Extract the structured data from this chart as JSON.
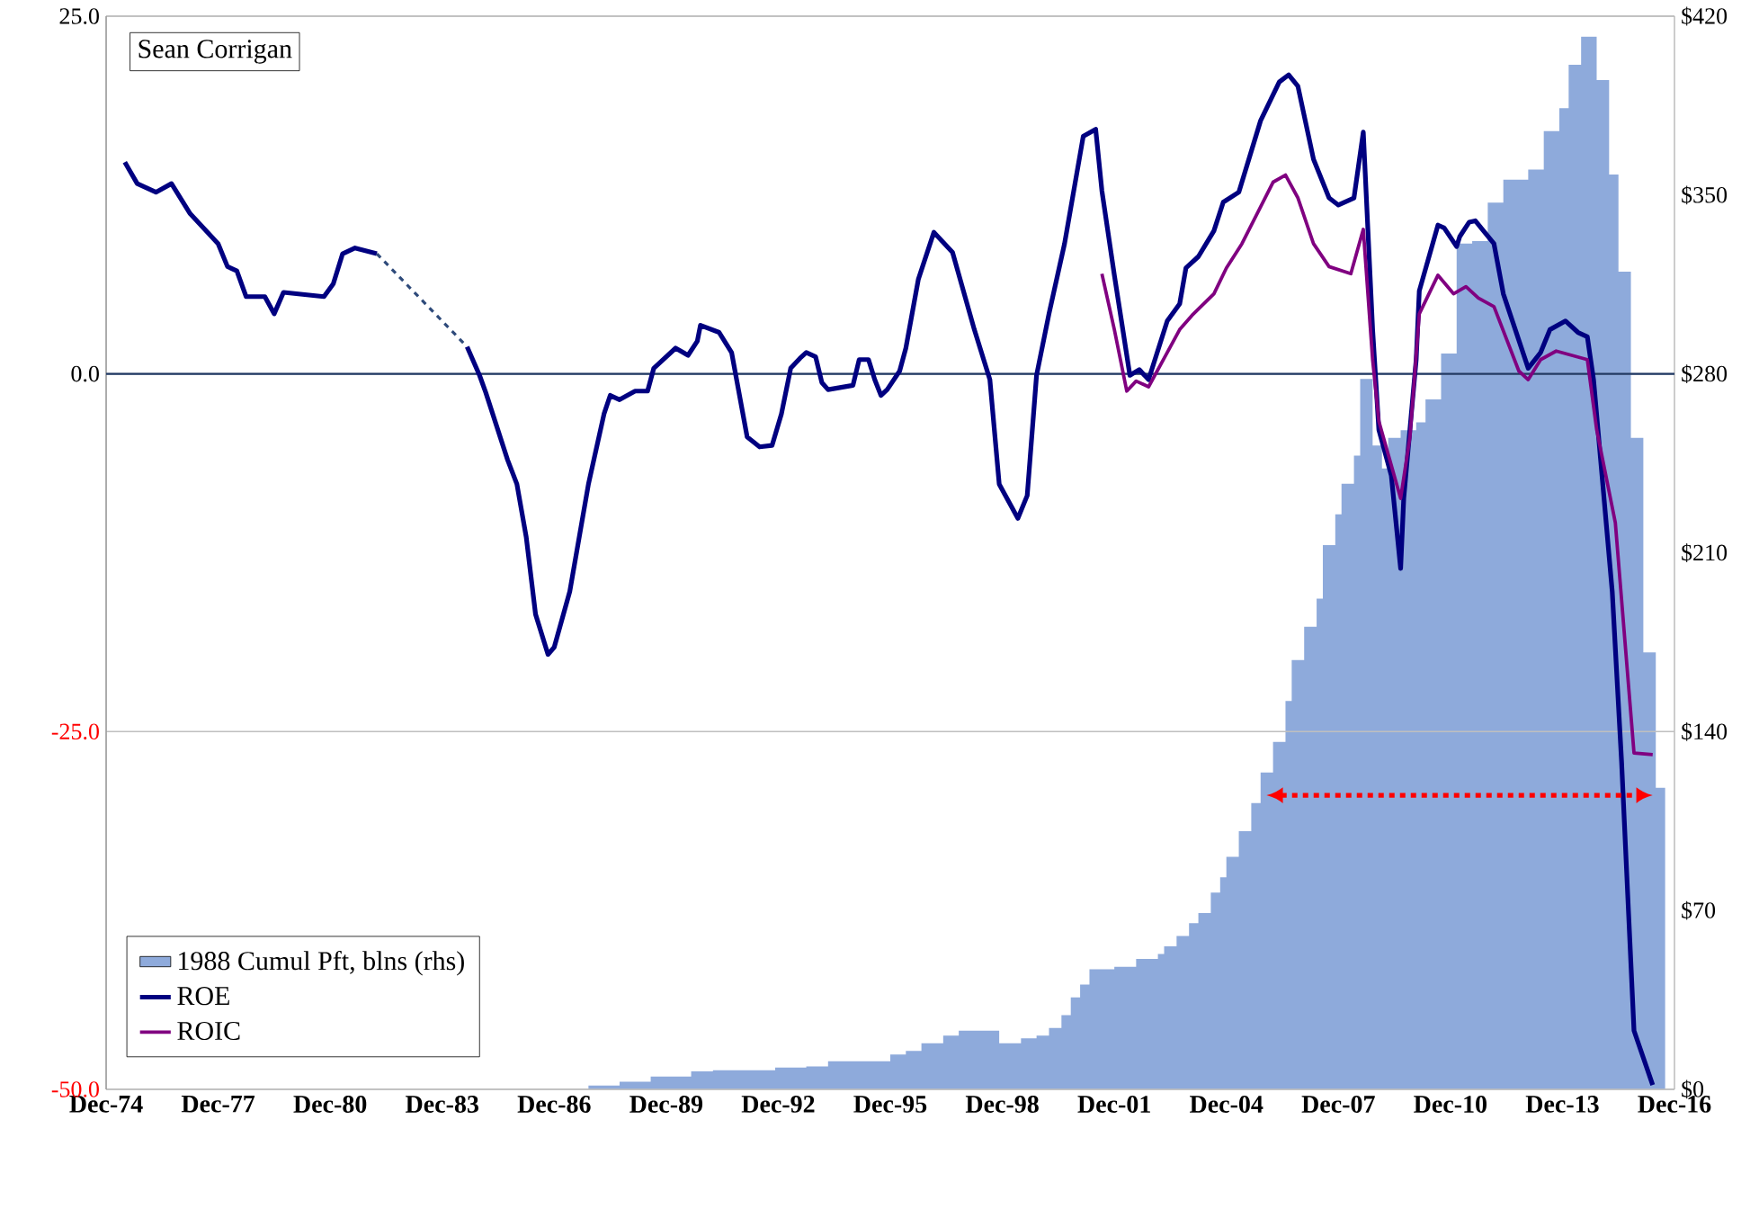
{
  "chart_data": {
    "type": "line",
    "annotations": [
      "Sean Corrigan"
    ],
    "xlim": [
      "1974-12",
      "2016-12"
    ],
    "xticks": [
      {
        "value": "1974-12",
        "label": "Dec-74"
      },
      {
        "value": "1977-12",
        "label": "Dec-77"
      },
      {
        "value": "1980-12",
        "label": "Dec-80"
      },
      {
        "value": "1983-12",
        "label": "Dec-83"
      },
      {
        "value": "1986-12",
        "label": "Dec-86"
      },
      {
        "value": "1989-12",
        "label": "Dec-89"
      },
      {
        "value": "1992-12",
        "label": "Dec-92"
      },
      {
        "value": "1995-12",
        "label": "Dec-95"
      },
      {
        "value": "1998-12",
        "label": "Dec-98"
      },
      {
        "value": "2001-12",
        "label": "Dec-01"
      },
      {
        "value": "2004-12",
        "label": "Dec-04"
      },
      {
        "value": "2007-12",
        "label": "Dec-07"
      },
      {
        "value": "2010-12",
        "label": "Dec-10"
      },
      {
        "value": "2013-12",
        "label": "Dec-13"
      },
      {
        "value": "2016-12",
        "label": "Dec-16"
      }
    ],
    "ylim": [
      -50,
      25
    ],
    "yticks": [
      {
        "value": -50,
        "label": "-50.0"
      },
      {
        "value": -25,
        "label": "-25.0"
      },
      {
        "value": 0,
        "label": "0.0"
      },
      {
        "value": 25,
        "label": "25.0"
      }
    ],
    "y2lim": [
      0,
      420
    ],
    "y2ticks": [
      {
        "value": 0,
        "label": "$0"
      },
      {
        "value": 70,
        "label": "$70"
      },
      {
        "value": 140,
        "label": "$140"
      },
      {
        "value": 210,
        "label": "$210"
      },
      {
        "value": 280,
        "label": "$280"
      },
      {
        "value": 350,
        "label": "$350"
      },
      {
        "value": 420,
        "label": "$420"
      }
    ],
    "grid": "y",
    "legend": "bottom left",
    "ref_lines": [
      {
        "axis": "y",
        "value": 0,
        "color": "#1f3864"
      }
    ],
    "series": [
      {
        "name": "1988 Cumul Pft, blns (rhs)",
        "type": "area",
        "axis": "y2",
        "color": "#8eaadb",
        "x": [
          "1987-11",
          "1988-09",
          "1989-07",
          "1990-08",
          "1991-03",
          "1992-11",
          "1993-09",
          "1994-04",
          "1995-12",
          "1996-05",
          "1996-10",
          "1997-05",
          "1997-10",
          "1998-11",
          "1999-06",
          "1999-11",
          "2000-03",
          "2000-07",
          "2000-10",
          "2001-01",
          "2001-04",
          "2001-12",
          "2002-07",
          "2003-02",
          "2003-04",
          "2003-08",
          "2003-12",
          "2004-03",
          "2004-07",
          "2004-10",
          "2004-12",
          "2005-04",
          "2005-08",
          "2005-11",
          "2006-03",
          "2006-07",
          "2006-09",
          "2007-01",
          "2007-05",
          "2007-07",
          "2007-11",
          "2008-01",
          "2008-05",
          "2008-07",
          "2008-11",
          "2009-02",
          "2009-04",
          "2009-08",
          "2010-01",
          "2010-04",
          "2010-09",
          "2011-02",
          "2011-07",
          "2011-12",
          "2012-05",
          "2013-01",
          "2013-06",
          "2013-11",
          "2014-02",
          "2014-06",
          "2014-11",
          "2015-03",
          "2015-06",
          "2015-10",
          "2016-02",
          "2016-06",
          "2016-09"
        ],
        "values": [
          1.5,
          3,
          5,
          7,
          7.5,
          8.5,
          9,
          11,
          13.6,
          15,
          18,
          21,
          23,
          18,
          20,
          21,
          24,
          29,
          36,
          41,
          47,
          48,
          51,
          53,
          56,
          60,
          65,
          69,
          77,
          83,
          91,
          101,
          112,
          124,
          136,
          152,
          168,
          181,
          192,
          213,
          225,
          237,
          248,
          278,
          252,
          243,
          255,
          258,
          261,
          270,
          288,
          331,
          332,
          347,
          356,
          360,
          375,
          384,
          401,
          412,
          395,
          358,
          320,
          255,
          171,
          118,
          118
        ]
      },
      {
        "name": "ROE",
        "color": "#000080",
        "x": [
          "1975-06",
          "1975-10",
          "1976-04",
          "1976-09",
          "1977-03",
          "1977-12",
          "1978-03",
          "1978-06",
          "1978-09",
          "1979-03",
          "1979-06",
          "1979-09",
          "1980-10",
          "1981-01",
          "1981-04",
          "1981-08",
          "1982-03",
          "1983-06",
          "1984-08",
          "1984-12",
          "1985-02",
          "1985-09",
          "1985-12",
          "1986-03",
          "1986-06",
          "1986-10",
          "1986-12",
          "1987-05",
          "1987-11",
          "1988-04",
          "1988-06",
          "1988-09",
          "1989-02",
          "1989-06",
          "1989-08",
          "1990-03",
          "1990-07",
          "1990-10",
          "1990-11",
          "1991-05",
          "1991-09",
          "1992-02",
          "1992-06",
          "1992-10",
          "1993-01",
          "1993-04",
          "1993-07",
          "1993-09",
          "1993-12",
          "1994-02",
          "1994-04",
          "1994-12",
          "1995-02",
          "1995-05",
          "1995-07",
          "1995-09",
          "1995-11",
          "1996-03",
          "1996-05",
          "1996-09",
          "1997-02",
          "1997-08",
          "1998-03",
          "1998-08",
          "1998-11",
          "1999-05",
          "1999-08",
          "1999-11",
          "2000-03",
          "2000-08",
          "2001-02",
          "2001-06",
          "2001-08",
          "2001-12",
          "2002-05",
          "2002-08",
          "2002-11",
          "2003-05",
          "2003-09",
          "2003-11",
          "2004-03",
          "2004-08",
          "2004-11",
          "2005-04",
          "2005-11",
          "2006-05",
          "2006-08",
          "2006-11",
          "2007-04",
          "2007-09",
          "2007-12",
          "2008-05",
          "2008-08",
          "2008-11",
          "2009-01",
          "2009-05",
          "2009-08",
          "2009-09",
          "2010-01",
          "2010-02",
          "2010-08",
          "2010-10",
          "2011-02",
          "2011-03",
          "2011-06",
          "2011-08",
          "2012-02",
          "2012-05",
          "2013-01",
          "2013-05",
          "2013-08",
          "2014-01",
          "2014-05",
          "2014-08",
          "2014-10",
          "2015-04",
          "2015-07",
          "2015-11",
          "2016-05"
        ],
        "values": [
          14.8,
          13.3,
          12.7,
          13.3,
          11.2,
          9.1,
          7.5,
          7.2,
          5.4,
          5.4,
          4.2,
          5.7,
          5.4,
          6.3,
          8.4,
          8.8,
          8.4,
          null,
          1.9,
          -0.1,
          -1.3,
          -6.0,
          -7.7,
          -11.4,
          -16.8,
          -19.6,
          -19.1,
          -15.2,
          -7.7,
          -2.8,
          -1.5,
          -1.8,
          -1.2,
          -1.2,
          0.4,
          1.8,
          1.3,
          2.3,
          3.4,
          2.9,
          1.5,
          -4.4,
          -5.1,
          -5.0,
          -2.8,
          0.4,
          1.1,
          1.5,
          1.2,
          -0.6,
          -1.1,
          -0.8,
          1.0,
          1.0,
          -0.4,
          -1.5,
          -1.1,
          0.2,
          1.8,
          6.6,
          9.9,
          8.5,
          3.1,
          -0.4,
          -7.7,
          -10.1,
          -8.5,
          -0.1,
          4.2,
          9.1,
          16.6,
          17.1,
          12.8,
          6.9,
          -0.1,
          0.3,
          -0.4,
          3.7,
          4.9,
          7.4,
          8.2,
          10.0,
          12.0,
          12.7,
          17.7,
          20.4,
          20.9,
          20.1,
          15.0,
          12.3,
          11.8,
          12.3,
          16.9,
          3.1,
          -3.9,
          -7.1,
          -13.6,
          -8.7,
          1.0,
          5.8,
          10.4,
          10.2,
          8.9,
          9.6,
          10.6,
          10.7,
          9.1,
          5.6,
          0.4,
          1.5,
          3.1,
          3.7,
          2.9,
          2.6,
          -0.4,
          -15.2,
          -27.1,
          -45.9,
          -49.7
        ]
      },
      {
        "type": "line",
        "line_style": "dashed",
        "color": "#2e4a7a",
        "x": [
          "1982-03",
          "1984-08"
        ],
        "values": [
          8.4,
          1.9
        ]
      },
      {
        "name": "ROIC",
        "color": "#800080",
        "x": [
          "2001-08",
          "2001-12",
          "2002-04",
          "2002-07",
          "2002-11",
          "2003-05",
          "2003-09",
          "2004-01",
          "2004-08",
          "2004-12",
          "2005-05",
          "2006-03",
          "2006-07",
          "2006-11",
          "2007-04",
          "2007-09",
          "2008-04",
          "2008-08",
          "2008-11",
          "2009-01",
          "2009-08",
          "2009-11",
          "2010-02",
          "2010-08",
          "2011-01",
          "2011-05",
          "2011-09",
          "2012-02",
          "2012-10",
          "2013-01",
          "2013-05",
          "2013-10",
          "2014-08",
          "2014-11",
          "2015-05",
          "2015-11",
          "2016-05"
        ],
        "values": [
          7.0,
          3.1,
          -1.2,
          -0.5,
          -0.9,
          1.5,
          3.1,
          4.1,
          5.6,
          7.4,
          9.1,
          13.4,
          13.9,
          12.3,
          9.1,
          7.5,
          7.0,
          10.1,
          1.0,
          -3.3,
          -8.7,
          -4.4,
          4.2,
          6.9,
          5.6,
          6.1,
          5.3,
          4.7,
          0.2,
          -0.4,
          1.0,
          1.6,
          1.0,
          -3.9,
          -10.4,
          -26.5,
          -26.6
        ]
      }
    ]
  }
}
